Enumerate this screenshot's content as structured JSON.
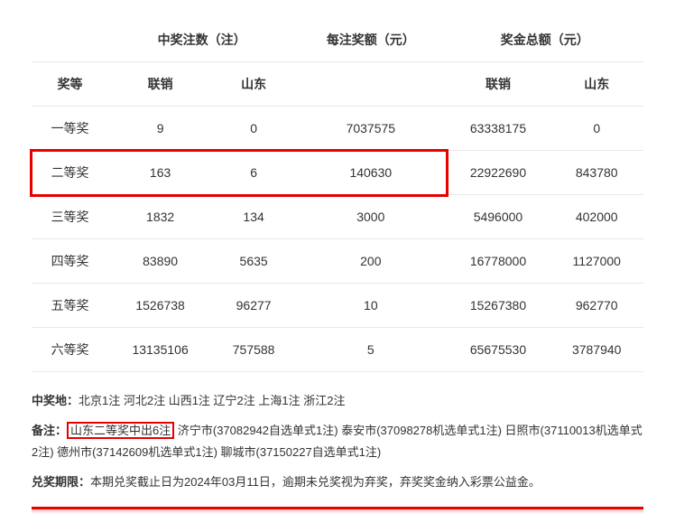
{
  "table": {
    "header_row1": {
      "col1": "",
      "col2": "中奖注数（注）",
      "col3": "每注奖额（元）",
      "col4": "奖金总额（元）"
    },
    "header_row2": {
      "c1": "奖等",
      "c2": "联销",
      "c3": "山东",
      "c4": "",
      "c5": "联销",
      "c6": "山东"
    },
    "rows": [
      {
        "tier": "一等奖",
        "lianxiao": "9",
        "shandong": "0",
        "perprize": "7037575",
        "total_lx": "63338175",
        "total_sd": "0"
      },
      {
        "tier": "二等奖",
        "lianxiao": "163",
        "shandong": "6",
        "perprize": "140630",
        "total_lx": "22922690",
        "total_sd": "843780"
      },
      {
        "tier": "三等奖",
        "lianxiao": "1832",
        "shandong": "134",
        "perprize": "3000",
        "total_lx": "5496000",
        "total_sd": "402000"
      },
      {
        "tier": "四等奖",
        "lianxiao": "83890",
        "shandong": "5635",
        "perprize": "200",
        "total_lx": "16778000",
        "total_sd": "1127000"
      },
      {
        "tier": "五等奖",
        "lianxiao": "1526738",
        "shandong": "96277",
        "perprize": "10",
        "total_lx": "15267380",
        "total_sd": "962770"
      },
      {
        "tier": "六等奖",
        "lianxiao": "13135106",
        "shandong": "757588",
        "perprize": "5",
        "total_lx": "65675530",
        "total_sd": "3787940"
      }
    ]
  },
  "notes": {
    "line1_label": "中奖地：",
    "line1_text": "北京1注 河北2注 山西1注 辽宁2注 上海1注 浙江2注",
    "line2_label": "备注：",
    "line2_highlight": "山东二等奖中出6注",
    "line2_text": " 济宁市(37082942自选单式1注) 泰安市(37098278机选单式1注) 日照市(37110013机选单式2注) 德州市(37142609机选单式1注) 聊城市(37150227自选单式1注)",
    "line3_label": "兑奖期限：",
    "line3_text": "本期兑奖截止日为2024年03月11日，逾期未兑奖视为弃奖，弃奖奖金纳入彩票公益金。"
  },
  "colors": {
    "highlight_border": "#e60000",
    "row_border": "#e8e8e8",
    "text": "#333333",
    "bg": "#ffffff"
  }
}
